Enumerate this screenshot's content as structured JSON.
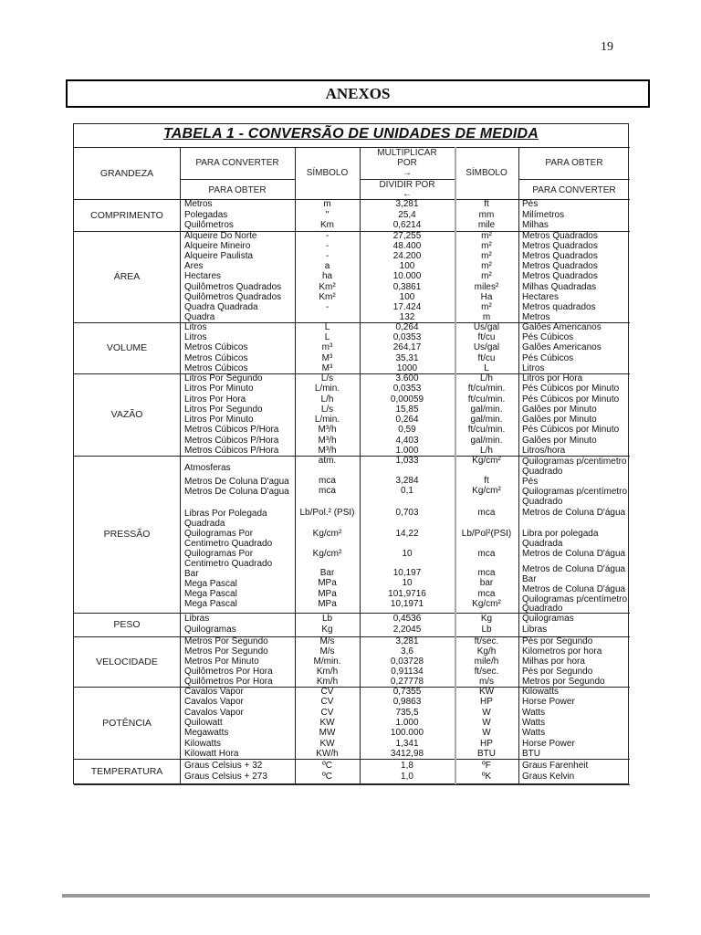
{
  "page_number": "19",
  "section_title": "ANEXOS",
  "table": {
    "title": "TABELA 1   - CONVERSÃO DE UNIDADES DE MEDIDA",
    "headers": {
      "grandeza": "GRANDEZA",
      "para_converter": "PARA CONVERTER",
      "para_obter_sub": "PARA OBTER",
      "simbolo_1": "SÍMBOLO",
      "multiplicar": "MULTIPLICAR",
      "por": "POR",
      "arrow_right": "→",
      "dividir_por": "DIVIDIR POR",
      "arrow_left": "←",
      "simbolo_2": "SÍMBOLO",
      "para_obter": "PARA OBTER",
      "para_converter_sub": "PARA CONVERTER"
    },
    "groups": [
      {
        "grandeza": "COMPRIMENTO",
        "rows": [
          [
            "Metros",
            "m",
            "3,281",
            "ft",
            "Pés"
          ],
          [
            "Polegadas",
            "\"",
            "25,4",
            "mm",
            "Milímetros"
          ],
          [
            "Quilômetros",
            "Km",
            "0,6214",
            "mile",
            "Milhas"
          ]
        ]
      },
      {
        "grandeza": "ÁREA",
        "rows": [
          [
            "Alqueire Do Norte",
            "-",
            "27,255",
            "m²",
            "Metros Quadrados"
          ],
          [
            "Alqueire Mineiro",
            "-",
            "48.400",
            "m²",
            "Metros Quadrados"
          ],
          [
            "Alqueire Paulista",
            "-",
            "24.200",
            "m²",
            "Metros Quadrados"
          ],
          [
            "Ares",
            "a",
            "100",
            "m²",
            "Metros Quadrados"
          ],
          [
            "Hectares",
            "ha",
            "10.000",
            "m²",
            "Metros Quadrados"
          ],
          [
            "Quilômetros Quadrados",
            "Km²",
            "0,3861",
            "miles²",
            "Milhas Quadradas"
          ],
          [
            "Quilômetros Quadrados",
            "Km²",
            "100",
            "Ha",
            "Hectares"
          ],
          [
            "Quadra Quadrada",
            "-",
            "17.424",
            "m²",
            "Metros quadrados"
          ],
          [
            "Quadra",
            "",
            "132",
            "m",
            "Metros"
          ]
        ]
      },
      {
        "grandeza": "VOLUME",
        "rows": [
          [
            "Litros",
            "L",
            "0,264",
            "Us/gal",
            "Galões Americanos"
          ],
          [
            "Litros",
            "L",
            "0,0353",
            "ft/cu",
            "Pés Cúbicos"
          ],
          [
            "Metros Cúbicos",
            "m³",
            "264,17",
            "Us/gal",
            "Galões Americanos"
          ],
          [
            "Metros Cúbicos",
            "M³",
            "35,31",
            "ft/cu",
            "Pés Cúbicos"
          ],
          [
            "Metros Cúbicos",
            "M³",
            "1000",
            "L",
            "Litros"
          ]
        ]
      },
      {
        "grandeza": "VAZÃO",
        "rows": [
          [
            "Litros Por Segundo",
            "L/s",
            "3.600",
            "L/h",
            "Litros por Hora"
          ],
          [
            "Litros Por Minuto",
            "L/min.",
            "0,0353",
            "ft/cu/min.",
            "Pés Cúbicos por Minuto"
          ],
          [
            "Litros Por Hora",
            "L/h",
            "0,00059",
            "ft/cu/min.",
            "Pés Cúbicos por Minuto"
          ],
          [
            "Litros Por Segundo",
            "L/s",
            "15,85",
            "gal/min.",
            "Galões por Minuto"
          ],
          [
            "Litros Por Minuto",
            "L/min.",
            "0,264",
            "gal/min.",
            "Galões por Minuto"
          ],
          [
            "Metros Cúbicos P/Hora",
            "M³/h",
            "0,59",
            "ft/cu/min.",
            "Pés Cúbicos por Minuto"
          ],
          [
            "Metros Cúbicos P/Hora",
            "M³/h",
            "4,403",
            "gal/min.",
            "Galões por Minuto"
          ],
          [
            "Metros Cúbicos P/Hora",
            "M³/h",
            "1.000",
            "L/h",
            "Litros/hora"
          ]
        ]
      },
      {
        "grandeza": "PRESSÃO",
        "columns": [
          [
            "Atmosferas",
            "Metros De Coluna D'agua",
            "Metros De Coluna D'agua",
            "Libras Por Polegada",
            "Quadrada",
            "Quilogramas Por",
            "Centimetro Quadrado",
            "Quilogramas Por",
            "Centimetro Quadrado",
            "Bar",
            "Mega Pascal",
            "Mega Pascal",
            "Mega Pascal"
          ],
          [
            "atm.",
            "mca",
            "mca",
            "Lb/Pol.² (PSI)",
            "Kg/cm²",
            "Kg/cm²",
            "Bar",
            "MPa",
            "MPa",
            "MPa"
          ],
          [
            "1,033",
            "3,284",
            "0,1",
            "0,703",
            "14,22",
            "10",
            "10,197",
            "10",
            "101,9716",
            "10,1971"
          ],
          [
            "Kg/cm²",
            "ft",
            "Kg/cm²",
            "mca",
            "Lb/Pol²(PSI)",
            "mca",
            "mca",
            "bar",
            "mca",
            "Kg/cm²"
          ],
          [
            "Quilogramas p/centimetro",
            "Quadrado",
            "Pés",
            "Quilogramas p/centímetro",
            "Quadrado",
            "Metros de Coluna D'água",
            "Libra por polegada",
            "Quadrada",
            "Metros de Coluna D'água",
            "Metros de Coluna D'água",
            "Bar",
            "Metros de Coluna D'água",
            "Quilogramas p/centímetro",
            "Quadrado"
          ]
        ]
      },
      {
        "grandeza": "PESO",
        "rows": [
          [
            "Libras",
            "Lb",
            "0,4536",
            "Kg",
            "Quilogramas"
          ],
          [
            "Quilogramas",
            "Kg",
            "2,2045",
            "Lb",
            "Libras"
          ]
        ]
      },
      {
        "grandeza": "VELOCIDADE",
        "rows": [
          [
            "Metros Por Segundo",
            "M/s",
            "3,281",
            "ft/sec.",
            "Pés por Segundo"
          ],
          [
            "Metros Por Segundo",
            "M/s",
            "3,6",
            "Kg/h",
            "Kilometros por hora"
          ],
          [
            "Metros Por Minuto",
            "M/min.",
            "0,03728",
            "mile/h",
            "Milhas por hora"
          ],
          [
            "Quilômetros Por Hora",
            "Km/h",
            "0,91134",
            "ft/sec.",
            "Pés por Segundo"
          ],
          [
            "Quilômetros Por Hora",
            "Km/h",
            "0,27778",
            "m/s",
            "Metros por Segundo"
          ]
        ]
      },
      {
        "grandeza": "POTÊNCIA",
        "rows": [
          [
            "Cavalos Vapor",
            "CV",
            "0,7355",
            "KW",
            "Kilowatts"
          ],
          [
            "Cavalos Vapor",
            "CV",
            "0,9863",
            "HP",
            "Horse Power"
          ],
          [
            "Cavalos Vapor",
            "CV",
            "735,5",
            "W",
            "Watts"
          ],
          [
            "Quilowatt",
            "KW",
            "1.000",
            "W",
            "Watts"
          ],
          [
            "Megawatts",
            "MW",
            "100.000",
            "W",
            "Watts"
          ],
          [
            "Kilowatts",
            "KW",
            "1,341",
            "HP",
            "Horse Power"
          ],
          [
            "Kilowatt Hora",
            "KW/h",
            "3412,98",
            "BTU",
            "BTU"
          ]
        ]
      },
      {
        "grandeza": "TEMPERATURA",
        "rows": [
          [
            "Graus Celsius + 32",
            "ºC",
            "1,8",
            "ºF",
            "Graus Farenheit"
          ],
          [
            "Graus Celsius + 273",
            "ºC",
            "1,0",
            "ºK",
            "Graus Kelvin"
          ]
        ]
      }
    ]
  }
}
